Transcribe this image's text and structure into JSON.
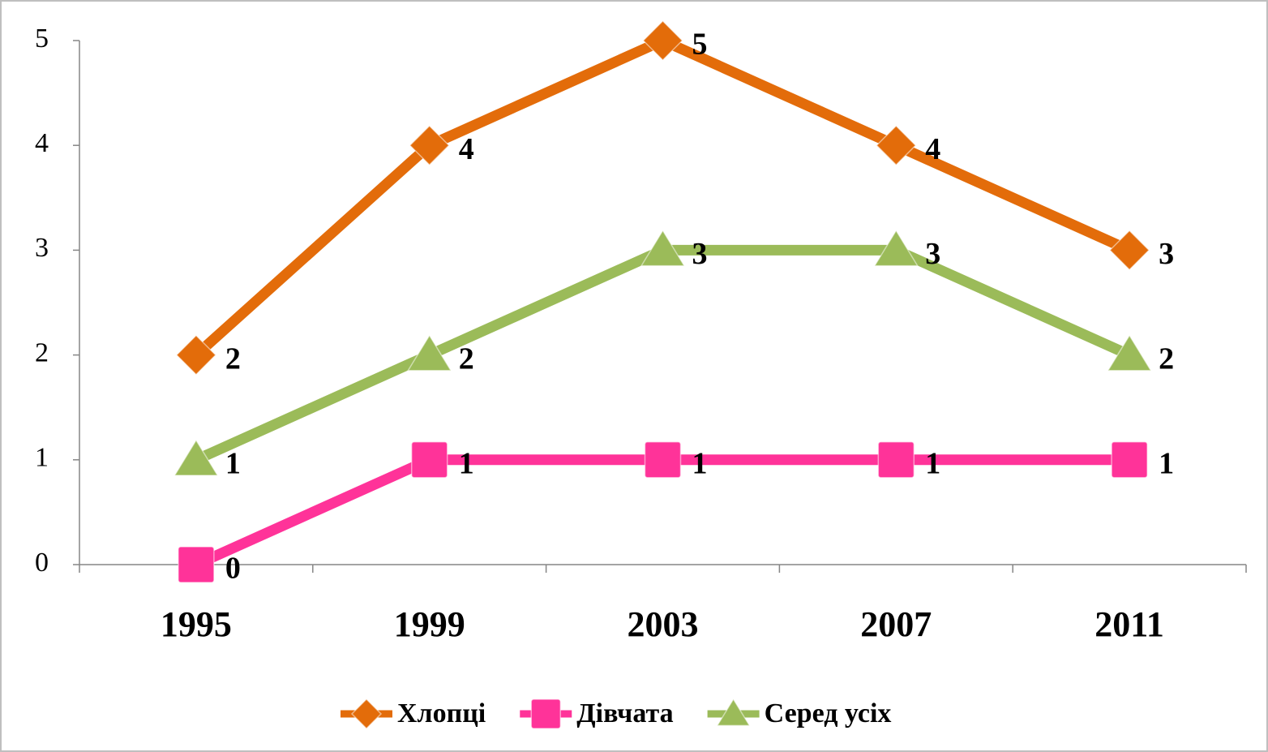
{
  "chart_data": {
    "type": "line",
    "categories": [
      "1995",
      "1999",
      "2003",
      "2007",
      "2011"
    ],
    "series": [
      {
        "name": "Хлопці",
        "color": "#e36c0a",
        "marker": "diamond",
        "values": [
          2,
          4,
          5,
          4,
          3
        ]
      },
      {
        "name": "Дівчата",
        "color": "#ff3399",
        "marker": "square",
        "values": [
          0,
          1,
          1,
          1,
          1
        ]
      },
      {
        "name": "Серед усіх",
        "color": "#9bbb59",
        "marker": "triangle",
        "values": [
          1,
          2,
          3,
          3,
          2
        ]
      }
    ],
    "ylim": [
      0,
      5
    ],
    "yticks": [
      0,
      1,
      2,
      3,
      4,
      5
    ],
    "grid": false,
    "data_labels": true,
    "legend": "bottom"
  }
}
